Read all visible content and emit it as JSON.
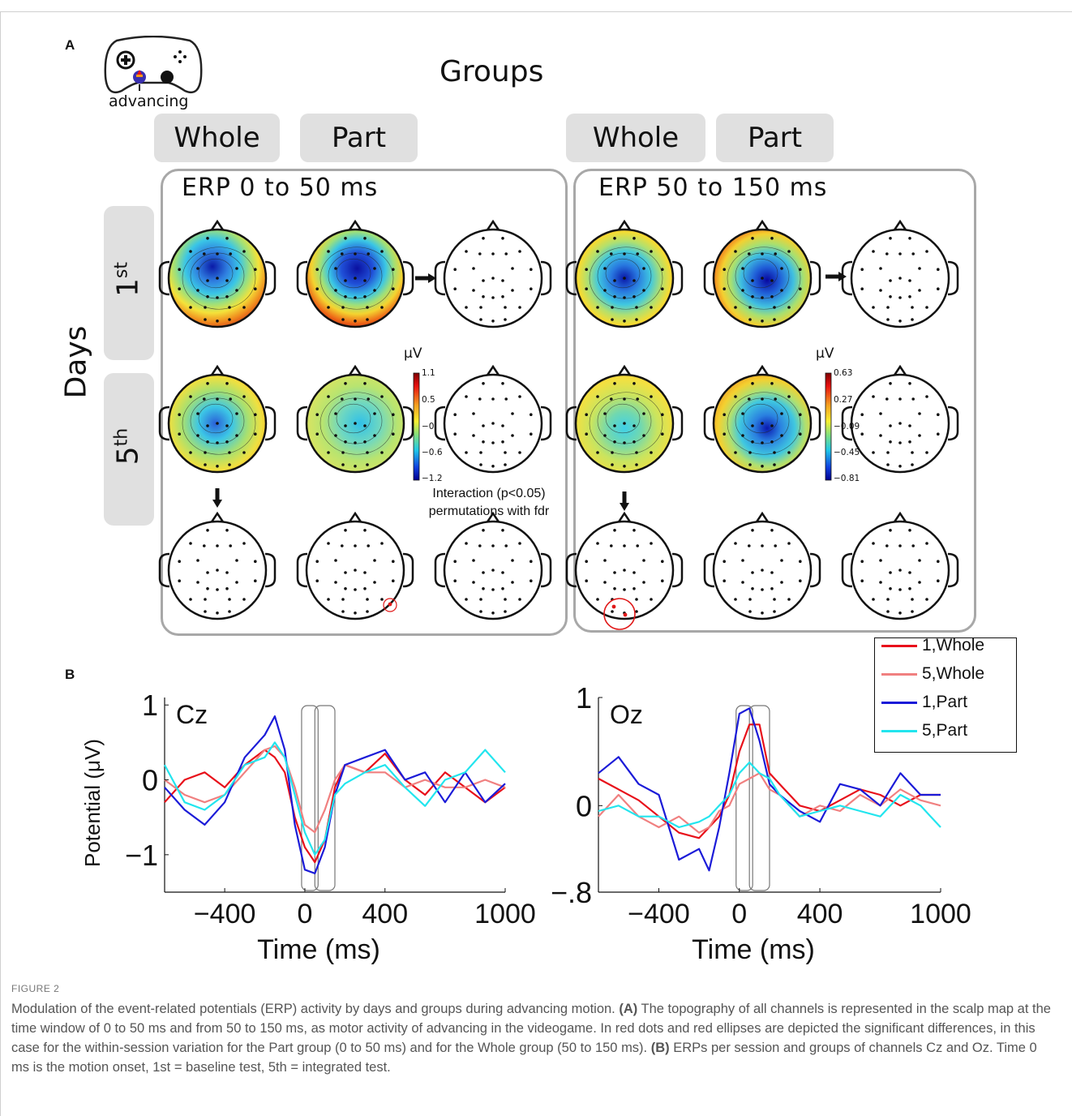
{
  "panel_a": {
    "letter": "A",
    "icon_caption": "advancing",
    "groups_title": "Groups",
    "days_title": "Days",
    "group_labels": [
      "Whole",
      "Part",
      "Whole",
      "Part"
    ],
    "day_labels": [
      {
        "base": "1",
        "sup": "st"
      },
      {
        "base": "5",
        "sup": "th"
      }
    ],
    "window_titles": [
      "ERP 0 to 50 ms",
      "ERP 50 to 150 ms"
    ],
    "colorbars": [
      {
        "unit": "μV",
        "ticks": [
          "1.1",
          "0.5",
          "−0",
          "−0.6",
          "−1.2"
        ]
      },
      {
        "unit": "μV",
        "ticks": [
          "0.63",
          "0.27",
          "−0.09",
          "−0.45",
          "−0.81"
        ]
      }
    ],
    "interaction_note": [
      "Interaction (p<0.05)",
      "permutations with fdr"
    ]
  },
  "panel_b": {
    "letter": "B",
    "legend": [
      "1,Whole",
      "5,Whole",
      "1,Part",
      "5,Part"
    ],
    "colors": {
      "1,Whole": "#e8101a",
      "5,Whole": "#f08080",
      "1,Part": "#1b1bd8",
      "5,Part": "#22e5ee"
    }
  },
  "chart_data": [
    {
      "type": "line",
      "title": "Cz",
      "xlabel": "Time (ms)",
      "ylabel": "Potential (μV)",
      "xlim": [
        -700,
        1000
      ],
      "ylim": [
        -1.5,
        1.1
      ],
      "xticks": [
        -400,
        0,
        400,
        1000
      ],
      "xtick_labels": [
        "−400",
        "0",
        "400",
        "1000"
      ],
      "yticks": [
        1,
        0,
        -1
      ],
      "ytick_labels": [
        "1",
        "0",
        "−1"
      ],
      "highlight_windows_ms": [
        [
          0,
          50
        ],
        [
          50,
          150
        ]
      ],
      "x": [
        -700,
        -600,
        -500,
        -400,
        -300,
        -200,
        -150,
        -100,
        -50,
        0,
        50,
        100,
        150,
        200,
        300,
        400,
        500,
        600,
        700,
        800,
        900,
        1000
      ],
      "series": [
        {
          "name": "1,Whole",
          "values": [
            -0.3,
            0.0,
            0.1,
            -0.1,
            0.2,
            0.4,
            0.3,
            0.1,
            -0.5,
            -0.9,
            -1.1,
            -0.8,
            -0.1,
            0.2,
            0.1,
            0.35,
            0.0,
            -0.2,
            0.1,
            -0.1,
            -0.3,
            -0.1
          ]
        },
        {
          "name": "5,Whole",
          "values": [
            0.0,
            -0.2,
            -0.3,
            -0.2,
            0.1,
            0.4,
            0.45,
            0.3,
            -0.1,
            -0.6,
            -0.7,
            -0.4,
            0.0,
            0.2,
            0.1,
            0.1,
            -0.1,
            0.0,
            -0.1,
            -0.1,
            0.0,
            -0.1
          ]
        },
        {
          "name": "1,Part",
          "values": [
            -0.1,
            -0.4,
            -0.6,
            -0.3,
            0.3,
            0.6,
            0.85,
            0.4,
            -0.6,
            -1.2,
            -1.25,
            -0.9,
            -0.2,
            0.2,
            0.3,
            0.4,
            0.0,
            0.1,
            -0.3,
            0.1,
            -0.3,
            -0.05
          ]
        },
        {
          "name": "5,Part",
          "values": [
            0.2,
            -0.3,
            -0.4,
            -0.2,
            0.2,
            0.3,
            0.5,
            0.3,
            -0.2,
            -0.7,
            -1.0,
            -0.8,
            -0.2,
            -0.05,
            0.1,
            0.2,
            -0.1,
            -0.35,
            0.0,
            0.1,
            0.4,
            0.1
          ]
        }
      ]
    },
    {
      "type": "line",
      "title": "Oz",
      "xlabel": "Time (ms)",
      "ylabel": "",
      "xlim": [
        -700,
        1000
      ],
      "ylim": [
        -0.8,
        1.0
      ],
      "xticks": [
        -400,
        0,
        400,
        1000
      ],
      "xtick_labels": [
        "−400",
        "0",
        "400",
        "1000"
      ],
      "yticks": [
        1,
        0,
        -0.8
      ],
      "ytick_labels": [
        "1",
        "0",
        "−.8"
      ],
      "highlight_windows_ms": [
        [
          0,
          50
        ],
        [
          50,
          150
        ]
      ],
      "x": [
        -700,
        -600,
        -500,
        -400,
        -300,
        -200,
        -150,
        -100,
        -50,
        0,
        50,
        100,
        150,
        200,
        300,
        400,
        500,
        600,
        700,
        800,
        900,
        1000
      ],
      "series": [
        {
          "name": "1,Whole",
          "values": [
            0.25,
            0.15,
            0.05,
            -0.1,
            -0.25,
            -0.3,
            -0.2,
            -0.1,
            0.1,
            0.5,
            0.75,
            0.75,
            0.3,
            0.2,
            0.0,
            -0.05,
            0.05,
            0.15,
            0.1,
            0.0,
            0.1,
            0.1
          ]
        },
        {
          "name": "5,Whole",
          "values": [
            -0.1,
            0.1,
            -0.1,
            -0.2,
            -0.1,
            -0.25,
            -0.2,
            -0.05,
            0.0,
            0.2,
            0.25,
            0.3,
            0.15,
            0.1,
            -0.1,
            0.0,
            -0.05,
            0.1,
            0.0,
            0.15,
            0.05,
            0.0
          ]
        },
        {
          "name": "1,Part",
          "values": [
            0.3,
            0.45,
            0.2,
            0.1,
            -0.5,
            -0.4,
            -0.6,
            -0.2,
            0.3,
            0.85,
            0.9,
            0.6,
            0.2,
            0.1,
            -0.05,
            -0.15,
            0.2,
            0.15,
            0.0,
            0.3,
            0.1,
            0.1
          ]
        },
        {
          "name": "5,Part",
          "values": [
            -0.05,
            0.0,
            -0.1,
            -0.1,
            -0.2,
            -0.15,
            -0.1,
            0.0,
            0.1,
            0.3,
            0.4,
            0.3,
            0.25,
            0.1,
            -0.1,
            -0.05,
            0.0,
            -0.05,
            -0.1,
            0.1,
            0.0,
            -0.2
          ]
        }
      ]
    }
  ],
  "caption": {
    "label": "FIGURE 2",
    "text_1": "Modulation of the event-related potentials (ERP) activity by days and groups during advancing motion. ",
    "bold_a": "(A)",
    "text_2": " The topography of all channels is represented in the scalp map at the time window of 0 to 50 ms and from 50 to 150 ms, as motor activity of advancing in the videogame. In red dots and red ellipses are depicted the significant differences, in this case for the within-session variation for the Part group (0 to 50 ms) and for the Whole group (50 to 150 ms). ",
    "bold_b": "(B)",
    "text_3": " ERPs per session and groups of channels Cz and Oz. Time 0 ms is the motion onset, 1st = baseline test, 5th = integrated test."
  }
}
